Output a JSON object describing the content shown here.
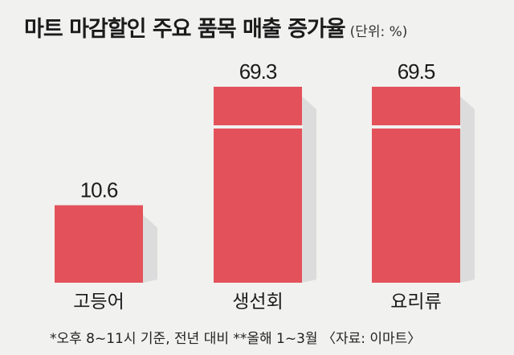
{
  "title": "마트 마감할인 주요 품목 매출 증가율",
  "unit": "(단위: %)",
  "footnote": "*오후 8~11시 기준, 전년 대비 **올해 1~3월 〈자료: 이마트〉",
  "colors": {
    "bar": "#e3525a",
    "background": "#f1f1f0",
    "shadow": "#d8d8d8"
  },
  "chart_data": {
    "type": "bar",
    "title": "마트 마감할인 주요 품목 매출 증가율",
    "unit": "(단위: %)",
    "categories": [
      "고등어",
      "생선회",
      "요리류"
    ],
    "values": [
      10.6,
      69.3,
      69.5
    ],
    "value_labels": [
      "10.6",
      "69.3",
      "69.5"
    ],
    "axis_break": true,
    "grid": false,
    "legend": "none"
  }
}
